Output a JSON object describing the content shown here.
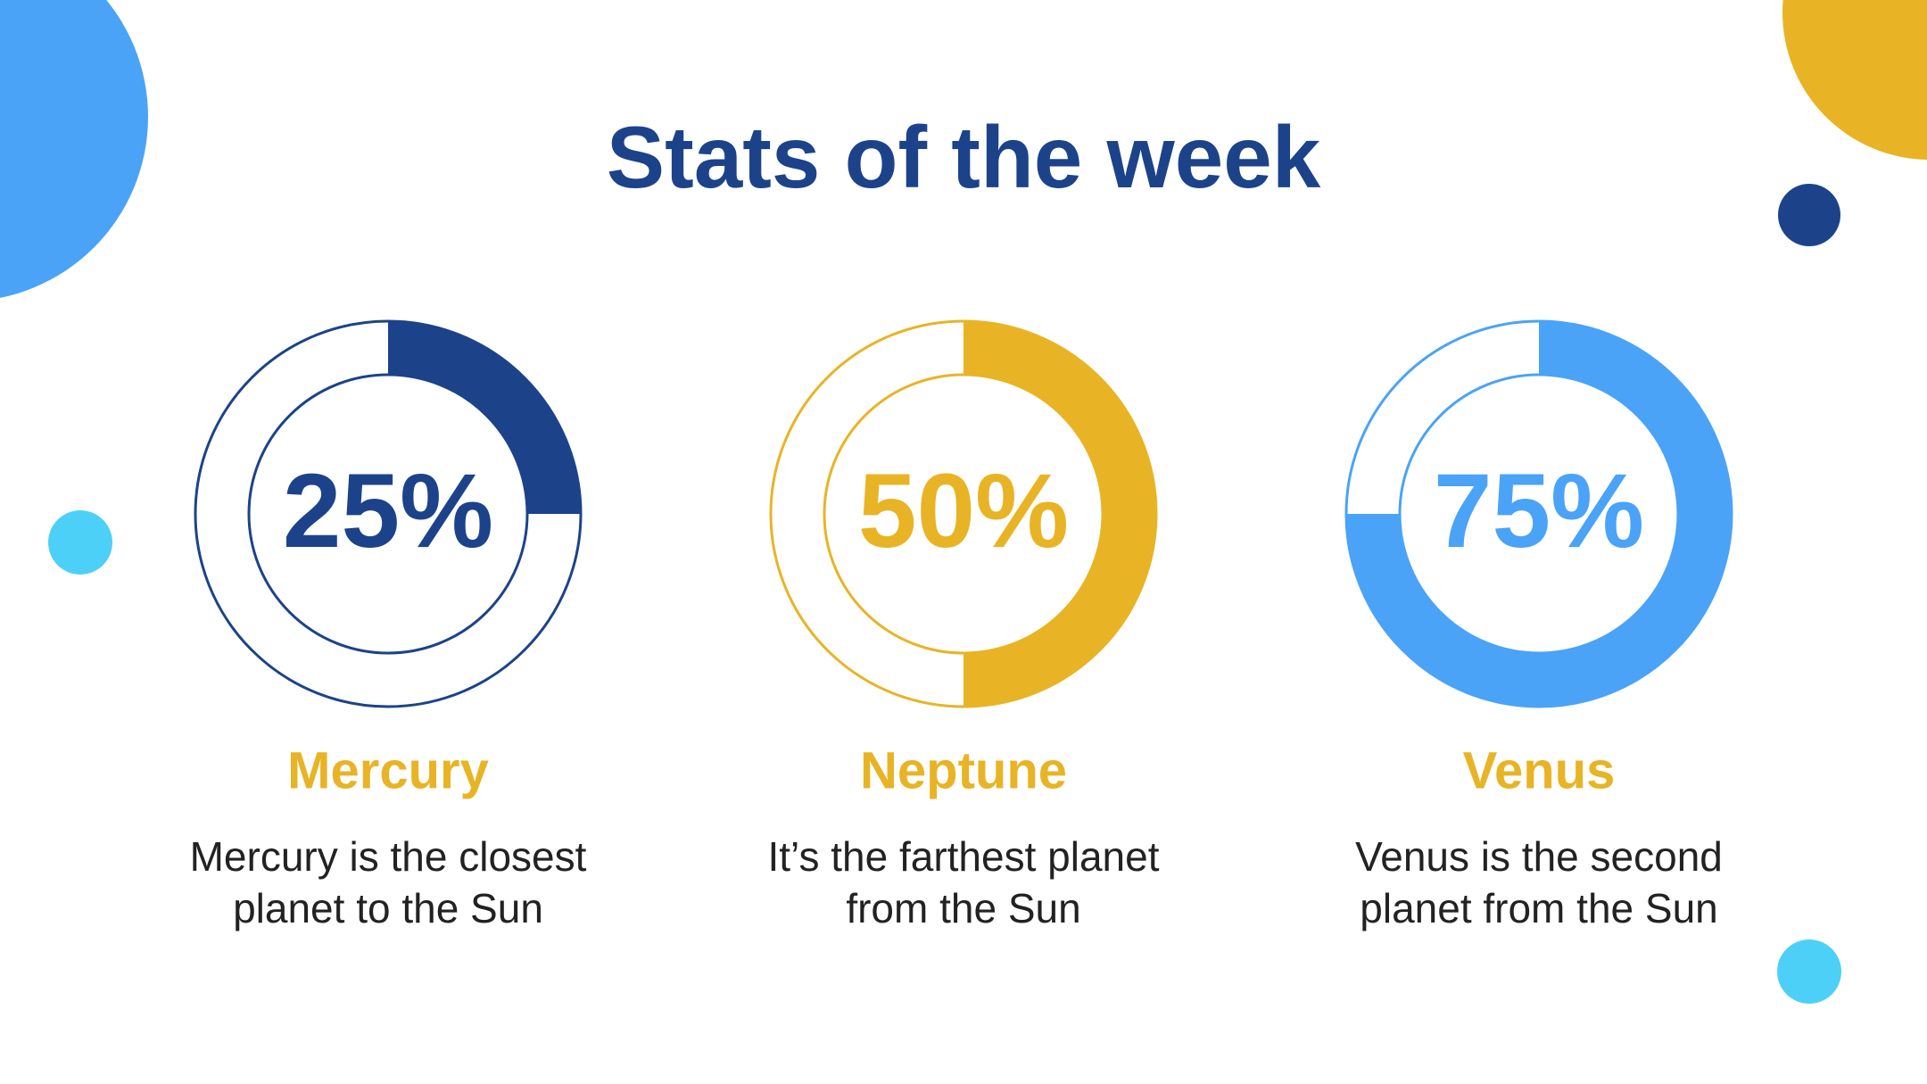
{
  "title": "Stats of the week",
  "chart_data": [
    {
      "type": "donut",
      "title": "Mercury",
      "subtitle": "Mercury is the closest planet to the Sun",
      "values": [
        25
      ],
      "value_labels": [
        "25%"
      ],
      "color": "#1c4389"
    },
    {
      "type": "donut",
      "title": "Neptune",
      "subtitle": "It’s the farthest planet from the Sun",
      "values": [
        50
      ],
      "value_labels": [
        "50%"
      ],
      "color": "#e8b425"
    },
    {
      "type": "donut",
      "title": "Venus",
      "subtitle": "Venus is the second planet from the Sun",
      "values": [
        75
      ],
      "value_labels": [
        "75%"
      ],
      "color": "#4aa3f7"
    }
  ]
}
